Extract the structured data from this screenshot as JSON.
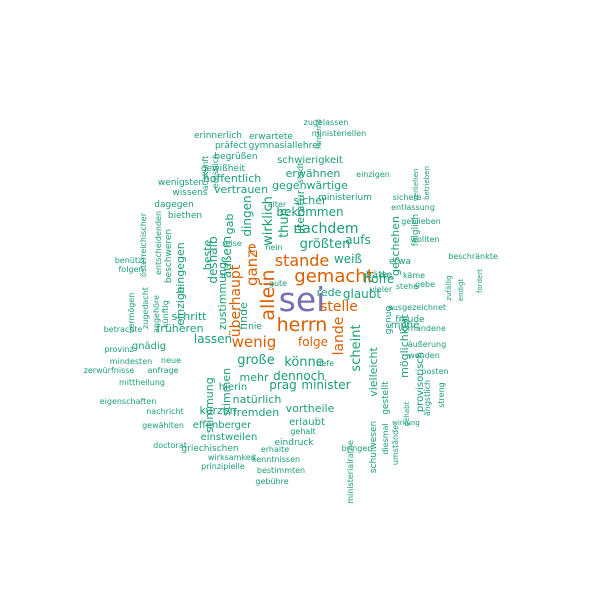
{
  "palette": {
    "purple": "#7570b3",
    "orange": "#d95f02",
    "teal": "#1b9e77"
  },
  "words": [
    {
      "text": "sei",
      "color": "purple"
    },
    {
      "text": "herrn",
      "color": "orange"
    },
    {
      "text": "gemacht",
      "color": "orange"
    },
    {
      "text": "allein",
      "color": "orange"
    },
    {
      "text": "stande",
      "color": "orange"
    },
    {
      "text": "wenig",
      "color": "orange"
    },
    {
      "text": "ganz",
      "color": "orange"
    },
    {
      "text": "überhaupt",
      "color": "orange"
    },
    {
      "text": "stelle",
      "color": "orange"
    },
    {
      "text": "lande",
      "color": "orange"
    },
    {
      "text": "e",
      "color": "orange"
    },
    {
      "text": "folge",
      "color": "orange"
    },
    {
      "text": "nachdem",
      "color": "teal"
    },
    {
      "text": "größten",
      "color": "teal"
    },
    {
      "text": "große",
      "color": "teal"
    },
    {
      "text": "könne",
      "color": "teal"
    },
    {
      "text": "scheint",
      "color": "teal"
    },
    {
      "text": "weiß",
      "color": "teal"
    },
    {
      "text": "thun",
      "color": "teal"
    },
    {
      "text": "wirklich",
      "color": "teal"
    },
    {
      "text": "äußern",
      "color": "teal"
    },
    {
      "text": "dingen",
      "color": "teal"
    },
    {
      "text": "deshalb",
      "color": "teal"
    },
    {
      "text": "lassen",
      "color": "teal"
    },
    {
      "text": "dennoch",
      "color": "teal"
    },
    {
      "text": "minister",
      "color": "teal"
    },
    {
      "text": "prag",
      "color": "teal"
    },
    {
      "text": "mehr",
      "color": "teal"
    },
    {
      "text": "hoffe",
      "color": "teal"
    },
    {
      "text": "glaubt",
      "color": "teal"
    },
    {
      "text": "rede",
      "color": "teal"
    },
    {
      "text": "vielleicht",
      "color": "teal"
    },
    {
      "text": "möglichkeit",
      "color": "teal"
    },
    {
      "text": "aufs",
      "color": "teal"
    },
    {
      "text": "geschehen",
      "color": "teal"
    },
    {
      "text": "bekommen",
      "color": "teal"
    },
    {
      "text": "erwähnen",
      "color": "teal"
    },
    {
      "text": "gegenwärtige",
      "color": "teal"
    },
    {
      "text": "schwierigkeit",
      "color": "teal"
    },
    {
      "text": "sicher",
      "color": "teal"
    },
    {
      "text": "literatur",
      "color": "teal"
    },
    {
      "text": "ministerium",
      "color": "teal"
    },
    {
      "text": "vertrauen",
      "color": "teal"
    },
    {
      "text": "hoffentlich",
      "color": "teal"
    },
    {
      "text": "begrüßen",
      "color": "teal"
    },
    {
      "text": "gewißheit",
      "color": "teal"
    },
    {
      "text": "präfect",
      "color": "teal"
    },
    {
      "text": "erinnerlich",
      "color": "teal"
    },
    {
      "text": "erwartete",
      "color": "teal"
    },
    {
      "text": "gymnasiallehrer",
      "color": "teal"
    },
    {
      "text": "ministeriellen",
      "color": "teal"
    },
    {
      "text": "zugelassen",
      "color": "teal"
    },
    {
      "text": "fördernd",
      "color": "teal"
    },
    {
      "text": "stadt",
      "color": "teal"
    },
    {
      "text": "auskunft",
      "color": "teal"
    },
    {
      "text": "ernstlich",
      "color": "teal"
    },
    {
      "text": "wenigsten",
      "color": "teal"
    },
    {
      "text": "wissens",
      "color": "teal"
    },
    {
      "text": "dagegen",
      "color": "teal"
    },
    {
      "text": "biethen",
      "color": "teal"
    },
    {
      "text": "gab",
      "color": "teal"
    },
    {
      "text": "zustimmung",
      "color": "teal"
    },
    {
      "text": "beste",
      "color": "teal"
    },
    {
      "text": "hingegen",
      "color": "teal"
    },
    {
      "text": "einzige",
      "color": "teal"
    },
    {
      "text": "beschweren",
      "color": "teal"
    },
    {
      "text": "entscheidenden",
      "color": "teal"
    },
    {
      "text": "österreichischer",
      "color": "teal"
    },
    {
      "text": "benützt",
      "color": "teal"
    },
    {
      "text": "folgen",
      "color": "teal"
    },
    {
      "text": "vermögen",
      "color": "teal"
    },
    {
      "text": "zugedacht",
      "color": "teal"
    },
    {
      "text": "angehöre",
      "color": "teal"
    },
    {
      "text": "künftig",
      "color": "teal"
    },
    {
      "text": "betrachte",
      "color": "teal"
    },
    {
      "text": "provinz",
      "color": "teal"
    },
    {
      "text": "gnädig",
      "color": "teal"
    },
    {
      "text": "mindesten",
      "color": "teal"
    },
    {
      "text": "neue",
      "color": "teal"
    },
    {
      "text": "zerwürfnisse",
      "color": "teal"
    },
    {
      "text": "anfrage",
      "color": "teal"
    },
    {
      "text": "mittheilung",
      "color": "teal"
    },
    {
      "text": "eigenschaften",
      "color": "teal"
    },
    {
      "text": "nachricht",
      "color": "teal"
    },
    {
      "text": "gewählten",
      "color": "teal"
    },
    {
      "text": "doctorat",
      "color": "teal"
    },
    {
      "text": "früheren",
      "color": "teal"
    },
    {
      "text": "schritt",
      "color": "teal"
    },
    {
      "text": "finde",
      "color": "teal"
    },
    {
      "text": "nie",
      "color": "teal"
    },
    {
      "text": "stimmung",
      "color": "teal"
    },
    {
      "text": "stimmen",
      "color": "teal"
    },
    {
      "text": "hierin",
      "color": "teal"
    },
    {
      "text": "natürlich",
      "color": "teal"
    },
    {
      "text": "fremden",
      "color": "teal"
    },
    {
      "text": "kurzen",
      "color": "teal"
    },
    {
      "text": "effenberger",
      "color": "teal"
    },
    {
      "text": "einstweilen",
      "color": "teal"
    },
    {
      "text": "griechischen",
      "color": "teal"
    },
    {
      "text": "erhalte",
      "color": "teal"
    },
    {
      "text": "wirksamkeit",
      "color": "teal"
    },
    {
      "text": "kenntnissen",
      "color": "teal"
    },
    {
      "text": "prinzipielle",
      "color": "teal"
    },
    {
      "text": "bestimmten",
      "color": "teal"
    },
    {
      "text": "gebühre",
      "color": "teal"
    },
    {
      "text": "vortheile",
      "color": "teal"
    },
    {
      "text": "erlaubt",
      "color": "teal"
    },
    {
      "text": "gehalt",
      "color": "teal"
    },
    {
      "text": "eindruck",
      "color": "teal"
    },
    {
      "text": "ministerialrathe",
      "color": "teal"
    },
    {
      "text": "schulwesen",
      "color": "teal"
    },
    {
      "text": "diesmal",
      "color": "teal"
    },
    {
      "text": "gestellt",
      "color": "teal"
    },
    {
      "text": "bringen",
      "color": "teal"
    },
    {
      "text": "umstände",
      "color": "teal"
    },
    {
      "text": "gehabt",
      "color": "teal"
    },
    {
      "text": "ängstlich",
      "color": "teal"
    },
    {
      "text": "wirkung",
      "color": "teal"
    },
    {
      "text": "streng",
      "color": "teal"
    },
    {
      "text": "posten",
      "color": "teal"
    },
    {
      "text": "wenden",
      "color": "teal"
    },
    {
      "text": "äußerung",
      "color": "teal"
    },
    {
      "text": "provisorisch",
      "color": "teal"
    },
    {
      "text": "vorhandene",
      "color": "teal"
    },
    {
      "text": "freude",
      "color": "teal"
    },
    {
      "text": "ausgezeichnet",
      "color": "teal"
    },
    {
      "text": "mühe",
      "color": "teal"
    },
    {
      "text": "genug",
      "color": "teal"
    },
    {
      "text": "vieler",
      "color": "teal"
    },
    {
      "text": "stehe",
      "color": "teal"
    },
    {
      "text": "hätte",
      "color": "teal"
    },
    {
      "text": "käme",
      "color": "teal"
    },
    {
      "text": "gebe",
      "color": "teal"
    },
    {
      "text": "zufällig",
      "color": "teal"
    },
    {
      "text": "endigt",
      "color": "teal"
    },
    {
      "text": "fordert",
      "color": "teal"
    },
    {
      "text": "beschränkte",
      "color": "teal"
    },
    {
      "text": "wollten",
      "color": "teal"
    },
    {
      "text": "etwa",
      "color": "teal"
    },
    {
      "text": "folglich",
      "color": "teal"
    },
    {
      "text": "geblieben",
      "color": "teal"
    },
    {
      "text": "entlassung",
      "color": "teal"
    },
    {
      "text": "sichere",
      "color": "teal"
    },
    {
      "text": "einzigen",
      "color": "teal"
    },
    {
      "text": "verliehen",
      "color": "teal"
    },
    {
      "text": "betrieben",
      "color": "teal"
    },
    {
      "text": "alter",
      "color": "teal"
    },
    {
      "text": "reise",
      "color": "teal"
    },
    {
      "text": "nein",
      "color": "teal"
    },
    {
      "text": "gute",
      "color": "teal"
    },
    {
      "text": "tiefe",
      "color": "teal"
    }
  ]
}
